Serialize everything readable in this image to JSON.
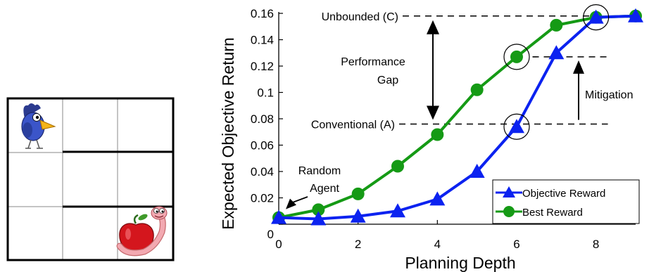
{
  "chart_data": {
    "type": "line",
    "xlabel": "Planning Depth",
    "ylabel": "Expected Objective Return",
    "xlim": [
      0,
      9
    ],
    "ylim": [
      0,
      0.16
    ],
    "xticks": [
      "0",
      "2",
      "4",
      "6",
      "8"
    ],
    "yticks": [
      "0",
      "0.02",
      "0.04",
      "0.06",
      "0.08",
      "0.1",
      "0.12",
      "0.14",
      "0.16"
    ],
    "x": [
      0,
      1,
      2,
      3,
      4,
      5,
      6,
      7,
      8,
      9
    ],
    "series": [
      {
        "name": "Objective Reward",
        "color": "#0b22f0",
        "marker": "triangle",
        "values": [
          0.005,
          0.004,
          0.006,
          0.01,
          0.019,
          0.04,
          0.074,
          0.13,
          0.157,
          0.158
        ]
      },
      {
        "name": "Best Reward",
        "color": "#159a15",
        "marker": "circle",
        "values": [
          0.005,
          0.011,
          0.023,
          0.044,
          0.068,
          0.102,
          0.127,
          0.151,
          0.157,
          0.158
        ]
      }
    ],
    "legend_position": "bottom-right",
    "reference_lines": [
      {
        "label": "Unbounded (C)",
        "y": 0.158
      },
      {
        "label": "Conventional (A)",
        "y": 0.076
      }
    ],
    "annotations": [
      {
        "label_lines": [
          "Performance",
          "Gap"
        ]
      },
      {
        "label_lines": [
          "Mitigation"
        ]
      },
      {
        "label_lines": [
          "Random",
          "Agent"
        ]
      }
    ],
    "circled_points": [
      {
        "x": 6,
        "y": 0.127
      },
      {
        "x": 6,
        "y": 0.074
      },
      {
        "x": 8,
        "y": 0.157
      }
    ]
  },
  "gridworld": {
    "rows": 3,
    "cols": 3,
    "bird_icon": "bird-icon",
    "worm_apple_icon": "apple-worm-icon"
  }
}
